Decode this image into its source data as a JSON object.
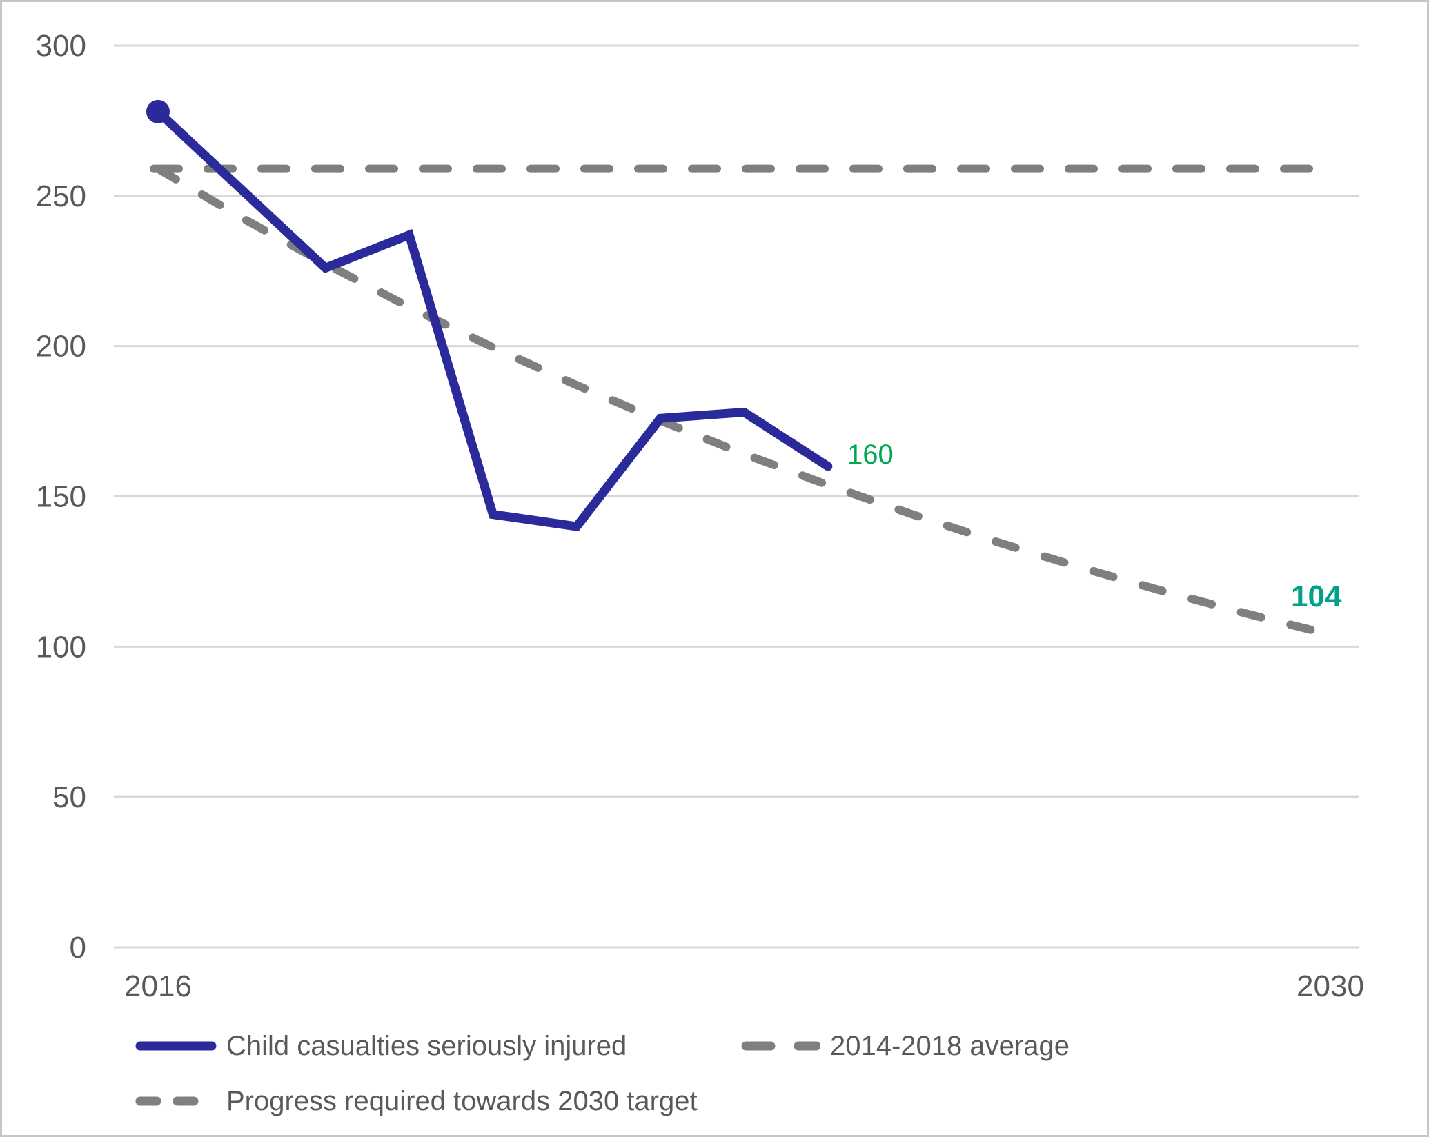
{
  "chart_data": {
    "type": "line",
    "title": "",
    "xlabel": "",
    "ylabel": "",
    "xlim": [
      2016,
      2030
    ],
    "ylim": [
      0,
      300
    ],
    "yticks": [
      300,
      250,
      200,
      150,
      100,
      50,
      0
    ],
    "xticks": [
      "2016",
      "2030"
    ],
    "grid": "horizontal",
    "legend_position": "bottom",
    "colors": {
      "series_blue": "#2a2a9b",
      "dash_gray": "#7f7f7f",
      "gridline": "#d7d7d7",
      "axis_text": "#595959",
      "label_green": "#00a651",
      "label_teal": "#00a188"
    },
    "series": [
      {
        "name": "Child casualties seriously injured",
        "style": "solid",
        "color": "#2a2a9b",
        "start_marker": true,
        "x": [
          2016,
          2017,
          2018,
          2019,
          2020,
          2021,
          2022,
          2023,
          2024
        ],
        "values": [
          278,
          252,
          226,
          237,
          144,
          140,
          176,
          178,
          160
        ]
      },
      {
        "name": "2014-2018 average",
        "style": "dashed",
        "color": "#7f7f7f",
        "x": [
          2016,
          2030
        ],
        "values": [
          259,
          259
        ]
      },
      {
        "name": "Progress required towards 2030 target",
        "style": "dashed",
        "color": "#7f7f7f",
        "x": [
          2016,
          2017,
          2018,
          2019,
          2020,
          2021,
          2022,
          2023,
          2024,
          2025,
          2026,
          2027,
          2028,
          2029,
          2030
        ],
        "values": [
          259,
          242.7,
          227.4,
          213.0,
          199.6,
          187.0,
          175.2,
          164.1,
          153.8,
          144.1,
          135.0,
          126.5,
          118.5,
          111.0,
          104
        ]
      }
    ],
    "annotations": [
      {
        "text": "160",
        "color": "#00a651",
        "bold": false,
        "at_year": 2024,
        "at_value": 160
      },
      {
        "text": "104",
        "color": "#00a188",
        "bold": true,
        "at_year": 2030,
        "at_value": 104
      }
    ]
  },
  "legend": {
    "items": [
      {
        "label": "Child casualties seriously injured"
      },
      {
        "label": "2014-2018 average"
      },
      {
        "label": "Progress required towards 2030 target"
      }
    ]
  }
}
